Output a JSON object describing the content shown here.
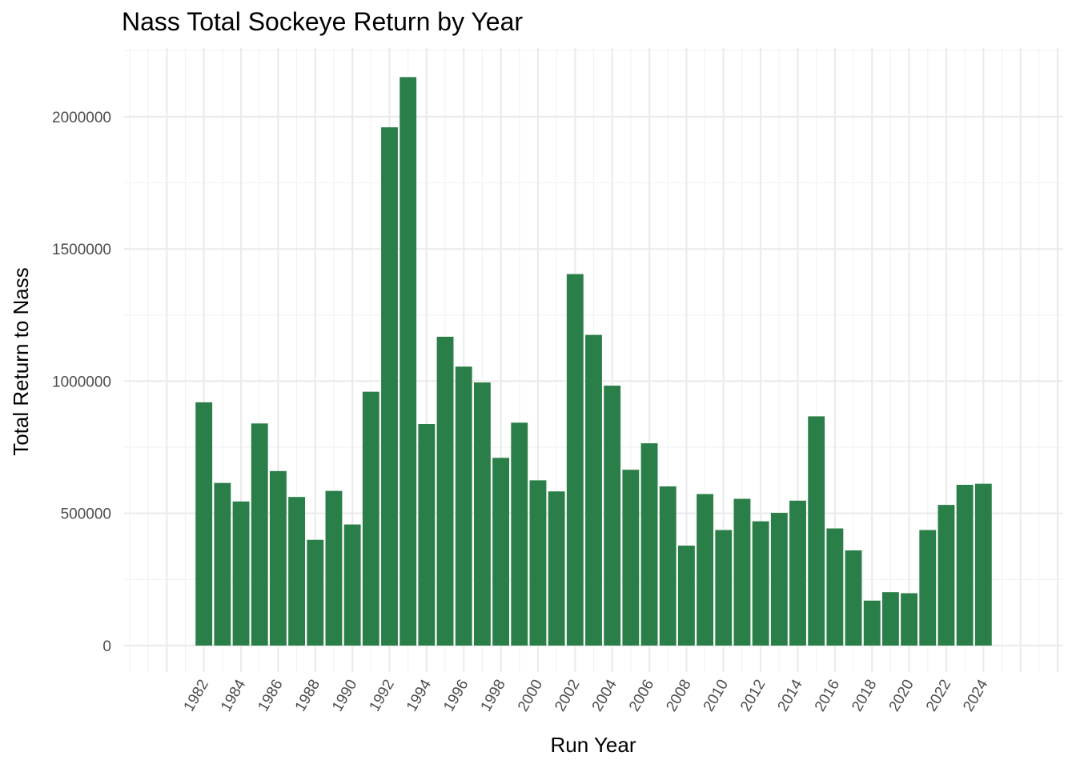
{
  "chart_data": {
    "type": "bar",
    "title": "Nass Total Sockeye Return by Year",
    "xlabel": "Run Year",
    "ylabel": "Total Return to Nass",
    "bar_color": "#2a7f48",
    "grid": true,
    "legend": "none",
    "xlim": [
      1977.7,
      2028.3
    ],
    "ylim": [
      -100000,
      2260000
    ],
    "x_ticks": [
      1982,
      1984,
      1986,
      1988,
      1990,
      1992,
      1994,
      1996,
      1998,
      2000,
      2002,
      2004,
      2006,
      2008,
      2010,
      2012,
      2014,
      2016,
      2018,
      2020,
      2022,
      2024
    ],
    "y_ticks": [
      0,
      500000,
      1000000,
      1500000,
      2000000
    ],
    "y_tick_labels": [
      "0",
      "500000",
      "1000000",
      "1500000",
      "2000000"
    ],
    "x": [
      1982,
      1983,
      1984,
      1985,
      1986,
      1987,
      1988,
      1989,
      1990,
      1991,
      1992,
      1993,
      1994,
      1995,
      1996,
      1997,
      1998,
      1999,
      2000,
      2001,
      2002,
      2003,
      2004,
      2005,
      2006,
      2007,
      2008,
      2009,
      2010,
      2011,
      2012,
      2013,
      2014,
      2015,
      2016,
      2017,
      2018,
      2019,
      2020,
      2021,
      2022,
      2023,
      2024
    ],
    "values": [
      920000,
      615000,
      545000,
      840000,
      660000,
      562000,
      400000,
      585000,
      458000,
      960000,
      1960000,
      2150000,
      838000,
      1168000,
      1055000,
      995000,
      710000,
      843000,
      625000,
      583000,
      1405000,
      1175000,
      983000,
      665000,
      765000,
      602000,
      378000,
      573000,
      437000,
      555000,
      470000,
      502000,
      548000,
      867000,
      443000,
      360000,
      170000,
      202000,
      198000,
      437000,
      532000,
      608000,
      612000
    ]
  }
}
